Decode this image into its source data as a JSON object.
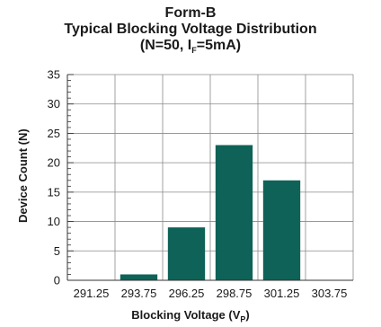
{
  "chart_data": {
    "type": "bar",
    "title_line1": "Form-B",
    "title_line2": "Typical Blocking Voltage Distribution",
    "title_line3_pre": "(N=50, I",
    "title_line3_sub": "F",
    "title_line3_post": "=5mA)",
    "xlabel_pre": "Blocking Voltage (V",
    "xlabel_sub": "P",
    "xlabel_post": ")",
    "ylabel": "Device Count (N)",
    "categories": [
      "291.25",
      "293.75",
      "296.25",
      "298.75",
      "301.25",
      "303.75"
    ],
    "values": [
      0,
      1,
      9,
      23,
      17,
      0
    ],
    "ylim": [
      0,
      35
    ],
    "yticks": [
      0,
      5,
      10,
      15,
      20,
      25,
      30,
      35
    ],
    "bar_color": "#0f6258",
    "grid": true
  }
}
